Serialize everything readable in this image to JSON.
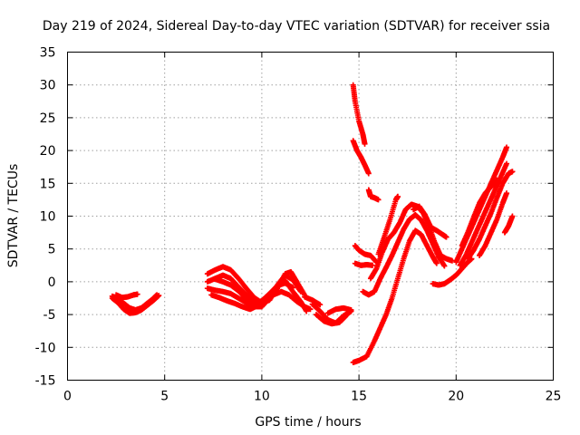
{
  "chart_data": {
    "type": "scatter",
    "title": "Day 219 of 2024, Sidereal Day-to-day VTEC variation (SDTVAR) for receiver ssia",
    "xlabel": "GPS time / hours",
    "ylabel": "SDTVAR / TECUs",
    "xlim": [
      0,
      25
    ],
    "ylim": [
      -15,
      35
    ],
    "xticks": [
      "0",
      "5",
      "10",
      "15",
      "20",
      "25"
    ],
    "yticks": [
      "-15",
      "-10",
      "-5",
      "0",
      "5",
      "10",
      "15",
      "20",
      "25",
      "30",
      "35"
    ],
    "grid": true,
    "legend": "none",
    "marker": "plus",
    "color": "#ff0000",
    "series": [
      {
        "points": [
          [
            2.3,
            -2.5
          ],
          [
            2.6,
            -3.2
          ],
          [
            2.9,
            -4.2
          ],
          [
            3.2,
            -4.8
          ],
          [
            3.5,
            -4.7
          ],
          [
            3.8,
            -4.3
          ],
          [
            4.1,
            -3.6
          ],
          [
            4.4,
            -2.9
          ],
          [
            4.7,
            -2.1
          ]
        ]
      },
      {
        "points": [
          [
            2.3,
            -2.2
          ],
          [
            2.6,
            -2.6
          ],
          [
            2.9,
            -3.3
          ],
          [
            3.2,
            -4.0
          ],
          [
            3.5,
            -4.3
          ],
          [
            3.8,
            -4.0
          ],
          [
            4.1,
            -3.3
          ],
          [
            4.4,
            -2.6
          ],
          [
            4.6,
            -2.0
          ]
        ]
      },
      {
        "points": [
          [
            2.5,
            -2.0
          ],
          [
            2.8,
            -2.4
          ],
          [
            3.1,
            -2.3
          ],
          [
            3.4,
            -2.0
          ],
          [
            3.6,
            -1.9
          ]
        ]
      },
      {
        "points": [
          [
            7.2,
            1.2
          ],
          [
            7.6,
            1.8
          ],
          [
            8.0,
            2.3
          ],
          [
            8.4,
            1.8
          ],
          [
            8.8,
            0.5
          ],
          [
            9.2,
            -1.0
          ],
          [
            9.6,
            -2.4
          ],
          [
            10.0,
            -3.2
          ],
          [
            10.4,
            -2.8
          ],
          [
            10.8,
            -1.0
          ],
          [
            11.2,
            1.2
          ],
          [
            11.5,
            1.5
          ],
          [
            11.8,
            0.0
          ],
          [
            12.2,
            -2.0
          ]
        ]
      },
      {
        "points": [
          [
            7.2,
            0.0
          ],
          [
            7.6,
            0.5
          ],
          [
            8.0,
            1.0
          ],
          [
            8.4,
            0.5
          ],
          [
            8.8,
            -0.8
          ],
          [
            9.2,
            -2.0
          ],
          [
            9.6,
            -3.0
          ],
          [
            10.0,
            -3.5
          ],
          [
            10.4,
            -2.5
          ],
          [
            10.8,
            -0.5
          ],
          [
            11.2,
            1.0
          ],
          [
            11.6,
            0.3
          ],
          [
            12.0,
            -1.5
          ]
        ]
      },
      {
        "points": [
          [
            7.2,
            -1.0
          ],
          [
            7.6,
            -1.3
          ],
          [
            8.0,
            -1.5
          ],
          [
            8.4,
            -1.8
          ],
          [
            8.8,
            -2.5
          ],
          [
            9.2,
            -3.2
          ],
          [
            9.6,
            -3.8
          ],
          [
            10.0,
            -3.8
          ],
          [
            10.4,
            -2.5
          ],
          [
            10.8,
            -0.8
          ],
          [
            11.2,
            0.2
          ],
          [
            11.6,
            -1.5
          ],
          [
            12.0,
            -3.0
          ],
          [
            12.3,
            -4.5
          ]
        ]
      },
      {
        "points": [
          [
            7.4,
            -2.0
          ],
          [
            7.8,
            -2.4
          ],
          [
            8.2,
            -2.9
          ],
          [
            8.6,
            -3.3
          ],
          [
            9.0,
            -3.8
          ],
          [
            9.4,
            -4.2
          ],
          [
            9.8,
            -3.6
          ],
          [
            10.2,
            -2.8
          ],
          [
            10.6,
            -2.0
          ],
          [
            11.0,
            -1.5
          ],
          [
            11.4,
            -2.0
          ],
          [
            11.8,
            -3.0
          ],
          [
            12.2,
            -3.8
          ],
          [
            12.5,
            -4.2
          ]
        ]
      },
      {
        "points": [
          [
            7.6,
            0.4
          ],
          [
            8.0,
            0.0
          ],
          [
            8.4,
            -0.5
          ],
          [
            8.8,
            -1.4
          ],
          [
            9.2,
            -2.6
          ],
          [
            9.6,
            -3.4
          ],
          [
            10.0,
            -2.9
          ],
          [
            10.4,
            -1.8
          ],
          [
            10.8,
            -0.6
          ],
          [
            11.2,
            -0.2
          ],
          [
            11.6,
            -0.9
          ]
        ]
      },
      {
        "points": [
          [
            12.6,
            -3.4
          ],
          [
            13.0,
            -4.5
          ],
          [
            13.4,
            -5.8
          ],
          [
            13.8,
            -6.3
          ],
          [
            14.2,
            -5.2
          ],
          [
            14.6,
            -4.5
          ]
        ]
      },
      {
        "points": [
          [
            12.8,
            -5.0
          ],
          [
            13.2,
            -6.0
          ],
          [
            13.6,
            -6.4
          ],
          [
            14.0,
            -6.2
          ],
          [
            14.4,
            -5.0
          ]
        ]
      },
      {
        "points": [
          [
            12.2,
            -2.3
          ],
          [
            12.6,
            -2.8
          ],
          [
            13.0,
            -3.5
          ]
        ]
      },
      {
        "points": [
          [
            13.4,
            -4.8
          ],
          [
            13.8,
            -4.2
          ],
          [
            14.2,
            -4.0
          ],
          [
            14.6,
            -4.3
          ]
        ]
      },
      {
        "points": [
          [
            14.7,
            30.0
          ],
          [
            14.8,
            27.5
          ],
          [
            15.0,
            24.5
          ],
          [
            15.2,
            22.5
          ],
          [
            15.3,
            21.0
          ]
        ]
      },
      {
        "points": [
          [
            14.7,
            21.5
          ],
          [
            14.9,
            20.0
          ],
          [
            15.1,
            19.0
          ],
          [
            15.3,
            17.8
          ],
          [
            15.5,
            16.5
          ]
        ]
      },
      {
        "points": [
          [
            15.5,
            14.0
          ],
          [
            15.6,
            13.0
          ],
          [
            15.8,
            12.8
          ],
          [
            16.0,
            12.5
          ]
        ]
      },
      {
        "points": [
          [
            14.8,
            5.5
          ],
          [
            15.0,
            4.8
          ],
          [
            15.3,
            4.2
          ],
          [
            15.6,
            4.0
          ],
          [
            15.9,
            3.0
          ]
        ]
      },
      {
        "points": [
          [
            14.8,
            2.8
          ],
          [
            15.1,
            2.5
          ],
          [
            15.4,
            2.6
          ],
          [
            15.7,
            2.5
          ]
        ]
      },
      {
        "points": [
          [
            14.7,
            -12.3
          ],
          [
            15.0,
            -12.0
          ],
          [
            15.4,
            -11.4
          ],
          [
            15.8,
            -9.0
          ],
          [
            16.1,
            -7.0
          ],
          [
            16.4,
            -5.0
          ],
          [
            16.7,
            -2.5
          ],
          [
            17.0,
            0.5
          ],
          [
            17.3,
            3.5
          ],
          [
            17.6,
            6.2
          ],
          [
            17.9,
            7.8
          ],
          [
            18.2,
            7.2
          ],
          [
            18.5,
            5.5
          ],
          [
            18.8,
            3.8
          ],
          [
            19.0,
            2.8
          ]
        ]
      },
      {
        "points": [
          [
            15.2,
            -1.5
          ],
          [
            15.5,
            -2.0
          ],
          [
            15.8,
            -1.5
          ],
          [
            16.1,
            0.5
          ],
          [
            16.4,
            2.2
          ],
          [
            16.7,
            4.0
          ],
          [
            17.0,
            6.0
          ],
          [
            17.3,
            8.0
          ],
          [
            17.6,
            9.5
          ],
          [
            17.9,
            10.2
          ],
          [
            18.2,
            9.4
          ],
          [
            18.5,
            7.8
          ],
          [
            18.8,
            5.8
          ],
          [
            19.1,
            3.8
          ],
          [
            19.4,
            2.4
          ]
        ]
      },
      {
        "points": [
          [
            15.6,
            0.5
          ],
          [
            15.9,
            2.0
          ],
          [
            16.2,
            4.5
          ],
          [
            16.5,
            6.5
          ],
          [
            16.8,
            7.5
          ],
          [
            17.1,
            9.0
          ],
          [
            17.4,
            11.0
          ],
          [
            17.7,
            11.8
          ],
          [
            18.0,
            11.5
          ],
          [
            18.3,
            10.5
          ],
          [
            18.6,
            8.5
          ],
          [
            18.9,
            6.0
          ],
          [
            19.2,
            4.0
          ],
          [
            19.5,
            3.5
          ],
          [
            19.8,
            3.2
          ]
        ]
      },
      {
        "points": [
          [
            16.0,
            4.2
          ],
          [
            16.3,
            6.8
          ],
          [
            16.6,
            9.5
          ],
          [
            16.9,
            12.5
          ],
          [
            17.0,
            13.0
          ]
        ]
      },
      {
        "points": [
          [
            17.8,
            11.0
          ],
          [
            18.1,
            11.5
          ],
          [
            18.4,
            10.2
          ],
          [
            18.7,
            8.3
          ],
          [
            19.0,
            7.8
          ],
          [
            19.3,
            7.2
          ],
          [
            19.5,
            6.8
          ]
        ]
      },
      {
        "points": [
          [
            18.8,
            -0.3
          ],
          [
            19.1,
            -0.5
          ],
          [
            19.4,
            -0.3
          ],
          [
            19.7,
            0.3
          ],
          [
            20.0,
            1.0
          ],
          [
            20.3,
            2.0
          ],
          [
            20.6,
            3.0
          ],
          [
            20.8,
            3.5
          ]
        ]
      },
      {
        "points": [
          [
            20.0,
            3.0
          ],
          [
            20.3,
            5.0
          ],
          [
            20.6,
            7.0
          ],
          [
            20.9,
            9.0
          ],
          [
            21.2,
            11.0
          ],
          [
            21.5,
            13.0
          ],
          [
            21.8,
            15.0
          ],
          [
            22.1,
            17.0
          ],
          [
            22.4,
            19.0
          ],
          [
            22.6,
            20.5
          ]
        ]
      },
      {
        "points": [
          [
            20.2,
            2.5
          ],
          [
            20.5,
            4.0
          ],
          [
            20.8,
            6.0
          ],
          [
            21.1,
            8.0
          ],
          [
            21.4,
            10.0
          ],
          [
            21.7,
            12.0
          ],
          [
            22.0,
            14.0
          ],
          [
            22.3,
            16.0
          ],
          [
            22.6,
            18.0
          ]
        ]
      },
      {
        "points": [
          [
            20.3,
            5.5
          ],
          [
            20.6,
            7.5
          ],
          [
            20.9,
            9.8
          ],
          [
            21.2,
            12.0
          ],
          [
            21.5,
            13.5
          ],
          [
            21.8,
            14.5
          ],
          [
            22.1,
            15.5
          ]
        ]
      },
      {
        "points": [
          [
            20.6,
            3.5
          ],
          [
            20.9,
            4.8
          ],
          [
            21.2,
            6.5
          ],
          [
            21.5,
            8.5
          ],
          [
            21.8,
            10.5
          ],
          [
            22.1,
            12.8
          ],
          [
            22.4,
            15.0
          ],
          [
            22.7,
            16.5
          ],
          [
            22.9,
            16.8
          ]
        ]
      },
      {
        "points": [
          [
            21.2,
            4.0
          ],
          [
            21.5,
            5.5
          ],
          [
            21.8,
            7.5
          ],
          [
            22.1,
            9.5
          ],
          [
            22.4,
            12.0
          ],
          [
            22.6,
            13.5
          ]
        ]
      },
      {
        "points": [
          [
            22.5,
            7.5
          ],
          [
            22.7,
            8.5
          ],
          [
            22.9,
            10.0
          ]
        ]
      }
    ]
  }
}
